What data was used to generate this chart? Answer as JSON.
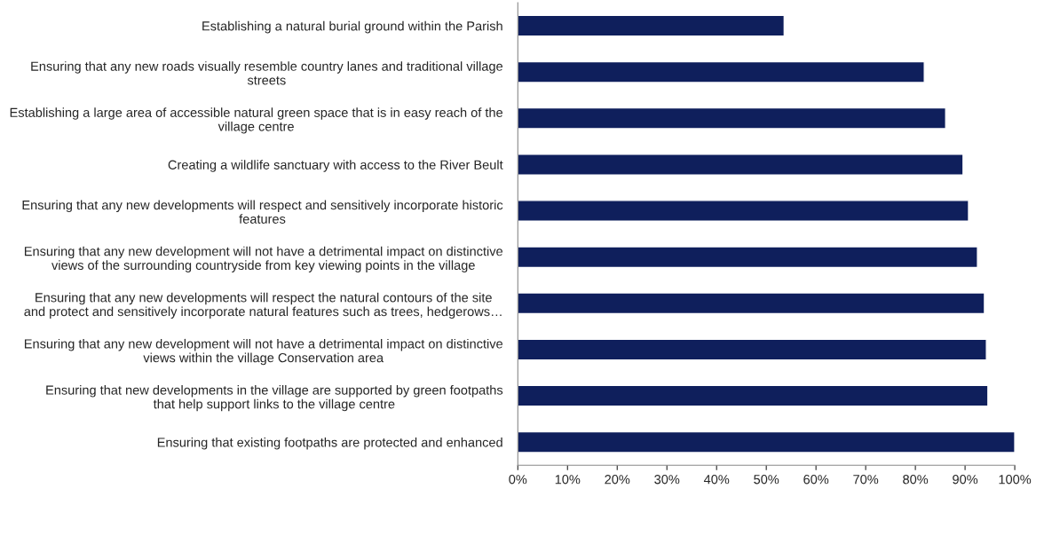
{
  "chart_data": {
    "type": "bar",
    "orientation": "horizontal",
    "categories": [
      "Establishing a natural burial ground within the Parish",
      "Ensuring that any new roads visually resemble country lanes and traditional village\nstreets",
      "Establishing a large area of accessible natural green space that is in easy reach of the\nvillage centre",
      "Creating a wildlife sanctuary with access to the River Beult",
      "Ensuring that any new developments will respect and sensitively incorporate historic\nfeatures",
      "Ensuring that any new development will not have a detrimental impact on distinctive\nviews of the surrounding countryside from key viewing points in the village",
      "Ensuring that any new developments will respect the natural contours of the site\nand protect and sensitively incorporate natural features such as trees, hedgerows…",
      "Ensuring that any new development will not have a detrimental impact on distinctive\nviews within the village Conservation area",
      "Ensuring that new developments in the village are supported by green footpaths\nthat help support links to the village centre",
      "Ensuring that existing footpaths are protected and enhanced"
    ],
    "values": [
      53.6,
      81.8,
      86.1,
      89.6,
      90.7,
      92.5,
      93.9,
      94.3,
      94.6,
      100
    ],
    "color": "#0f1f5c",
    "xlim": [
      0,
      100
    ],
    "xticks": [
      {
        "value": 0,
        "label": "0%"
      },
      {
        "value": 10,
        "label": "10%"
      },
      {
        "value": 20,
        "label": "20%"
      },
      {
        "value": 30,
        "label": "30%"
      },
      {
        "value": 40,
        "label": "40%"
      },
      {
        "value": 50,
        "label": "50%"
      },
      {
        "value": 60,
        "label": "60%"
      },
      {
        "value": 70,
        "label": "70%"
      },
      {
        "value": 80,
        "label": "80%"
      },
      {
        "value": 90,
        "label": "90%"
      },
      {
        "value": 100,
        "label": "100%"
      }
    ],
    "grid": false,
    "legend": false
  }
}
